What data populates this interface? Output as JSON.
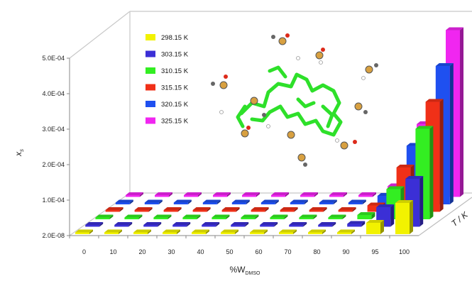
{
  "chart_data": {
    "type": "bar",
    "subtype": "3d-bar",
    "xlabel": "%W",
    "xlabel_subscript": "DMSO",
    "ylabel": "x",
    "ylabel_subscript": "s",
    "zlabel": "T / K",
    "categories": [
      "0",
      "10",
      "20",
      "30",
      "40",
      "50",
      "60",
      "70",
      "80",
      "90",
      "95",
      "100"
    ],
    "y_ticks": [
      "2.0E-08",
      "1.0E-04",
      "2.0E-04",
      "3.0E-04",
      "4.0E-04",
      "5.0E-04"
    ],
    "ylim": [
      2e-08,
      0.0005
    ],
    "legend_position": "top-left (inside)",
    "series": [
      {
        "name": "298.15 K",
        "color": "#f2f200",
        "values": [
          2e-08,
          2e-08,
          2e-08,
          2e-08,
          2e-08,
          2e-08,
          2e-08,
          2e-08,
          2e-08,
          5e-06,
          3.2e-05,
          8.8e-05
        ]
      },
      {
        "name": "303.15 K",
        "color": "#3b2fd6",
        "values": [
          2e-08,
          2e-08,
          2e-08,
          2e-08,
          2e-08,
          2e-08,
          2e-08,
          2e-08,
          2e-08,
          8e-06,
          5.5e-05,
          0.000135
        ]
      },
      {
        "name": "310.15 K",
        "color": "#33ee22",
        "values": [
          2e-08,
          2e-08,
          2e-08,
          2e-08,
          2e-08,
          2e-08,
          2e-08,
          2e-08,
          2e-08,
          1.2e-05,
          8.5e-05,
          0.000255
        ]
      },
      {
        "name": "315.15 K",
        "color": "#f03018",
        "values": [
          2e-08,
          2e-08,
          2e-08,
          2e-08,
          2e-08,
          2e-08,
          2e-08,
          2e-08,
          2e-08,
          1.8e-05,
          0.000125,
          0.00031
        ]
      },
      {
        "name": "320.15 K",
        "color": "#1f50f0",
        "values": [
          2e-08,
          2e-08,
          2e-08,
          2e-08,
          2e-08,
          2e-08,
          2e-08,
          2e-08,
          2e-08,
          2.4e-05,
          0.000165,
          0.00039
        ]
      },
      {
        "name": "325.15 K",
        "color": "#f026f0",
        "values": [
          2e-08,
          2e-08,
          2e-08,
          2e-08,
          2e-08,
          2e-08,
          2e-08,
          2e-08,
          2e-08,
          3e-05,
          0.000205,
          0.00047
        ]
      }
    ],
    "inset": "molecular structure rendering"
  }
}
